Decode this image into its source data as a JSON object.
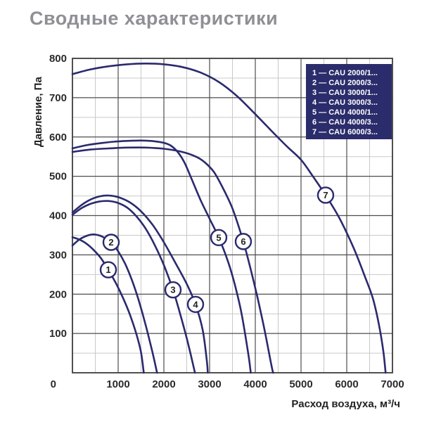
{
  "page_title": "Сводные характеристики",
  "colors": {
    "curve": "#2a2a6e",
    "legend_bg": "#2b2c6b",
    "legend_text": "#ffffff",
    "title_text": "#8f9095",
    "axis_text": "#2a2a2a",
    "grid_major": "#4d4d4d",
    "grid_minor": "#c9c9c9",
    "plot_border": "#3c3c3c",
    "marker_fill": "#ffffff"
  },
  "chart_data": {
    "type": "line",
    "title": "Сводные характеристики",
    "xlabel": "Расход воздуха, м³/ч",
    "ylabel": "Давление, Па",
    "xlim": [
      0,
      7000
    ],
    "ylim": [
      0,
      800
    ],
    "x_major_ticks": [
      1000,
      2000,
      3000,
      4000,
      5000,
      6000,
      7000
    ],
    "y_major_ticks": [
      800,
      700,
      600,
      500,
      400,
      300,
      200,
      100
    ],
    "origin_tick": "0",
    "x_minor_step": 500,
    "y_minor_step": 50,
    "grid": true,
    "legend_position": "top-right",
    "legend_separator": "—",
    "series": [
      {
        "num": "1",
        "label": "CAU 2000/1...",
        "marker_at": [
          785,
          262
        ],
        "points": [
          [
            0,
            345
          ],
          [
            150,
            339
          ],
          [
            300,
            329
          ],
          [
            450,
            314
          ],
          [
            620,
            292
          ],
          [
            785,
            262
          ],
          [
            950,
            228
          ],
          [
            1100,
            192
          ],
          [
            1250,
            150
          ],
          [
            1400,
            98
          ],
          [
            1500,
            52
          ],
          [
            1560,
            0
          ]
        ]
      },
      {
        "num": "2",
        "label": "CAU 2000/3...",
        "marker_at": [
          846,
          332
        ],
        "points": [
          [
            0,
            324
          ],
          [
            150,
            339
          ],
          [
            300,
            348
          ],
          [
            450,
            352
          ],
          [
            600,
            349
          ],
          [
            720,
            342
          ],
          [
            846,
            332
          ],
          [
            1000,
            309
          ],
          [
            1150,
            278
          ],
          [
            1300,
            236
          ],
          [
            1450,
            184
          ],
          [
            1600,
            122
          ],
          [
            1750,
            52
          ],
          [
            1850,
            0
          ]
        ]
      },
      {
        "num": "3",
        "label": "CAU 3000/1...",
        "marker_at": [
          2200,
          211
        ],
        "points": [
          [
            0,
            402
          ],
          [
            200,
            419
          ],
          [
            400,
            430
          ],
          [
            600,
            436
          ],
          [
            800,
            437
          ],
          [
            1000,
            432
          ],
          [
            1200,
            420
          ],
          [
            1400,
            398
          ],
          [
            1600,
            367
          ],
          [
            1800,
            325
          ],
          [
            2000,
            274
          ],
          [
            2200,
            211
          ],
          [
            2350,
            152
          ],
          [
            2500,
            88
          ],
          [
            2600,
            40
          ],
          [
            2680,
            0
          ]
        ]
      },
      {
        "num": "4",
        "label": "CAU 3000/3...",
        "marker_at": [
          2692,
          174
        ],
        "points": [
          [
            0,
            408
          ],
          [
            200,
            427
          ],
          [
            400,
            441
          ],
          [
            600,
            449
          ],
          [
            800,
            451
          ],
          [
            1000,
            447
          ],
          [
            1250,
            434
          ],
          [
            1500,
            411
          ],
          [
            1750,
            377
          ],
          [
            2000,
            332
          ],
          [
            2250,
            280
          ],
          [
            2500,
            226
          ],
          [
            2692,
            174
          ],
          [
            2850,
            108
          ],
          [
            2940,
            30
          ],
          [
            2960,
            0
          ]
        ]
      },
      {
        "num": "5",
        "label": "CAU 4000/1...",
        "marker_at": [
          3200,
          344
        ],
        "points": [
          [
            0,
            571
          ],
          [
            300,
            579
          ],
          [
            600,
            584
          ],
          [
            900,
            588
          ],
          [
            1200,
            590
          ],
          [
            1500,
            591
          ],
          [
            1800,
            589
          ],
          [
            2000,
            585
          ],
          [
            2150,
            578
          ],
          [
            2300,
            562
          ],
          [
            2450,
            535
          ],
          [
            2600,
            495
          ],
          [
            2800,
            440
          ],
          [
            3000,
            392
          ],
          [
            3200,
            344
          ],
          [
            3400,
            284
          ],
          [
            3550,
            225
          ],
          [
            3700,
            150
          ],
          [
            3850,
            45
          ],
          [
            3900,
            0
          ]
        ]
      },
      {
        "num": "6",
        "label": "CAU 4000/3...",
        "marker_at": [
          3738,
          334
        ],
        "points": [
          [
            0,
            562
          ],
          [
            400,
            568
          ],
          [
            800,
            571
          ],
          [
            1200,
            573
          ],
          [
            1600,
            573
          ],
          [
            2000,
            570
          ],
          [
            2400,
            562
          ],
          [
            2700,
            550
          ],
          [
            2900,
            535
          ],
          [
            3100,
            510
          ],
          [
            3300,
            468
          ],
          [
            3480,
            424
          ],
          [
            3600,
            385
          ],
          [
            3738,
            334
          ],
          [
            3880,
            272
          ],
          [
            4050,
            190
          ],
          [
            4200,
            110
          ],
          [
            4350,
            20
          ],
          [
            4390,
            0
          ]
        ]
      },
      {
        "num": "7",
        "label": "CAU 6000/3...",
        "marker_at": [
          5538,
          452
        ],
        "points": [
          [
            0,
            760
          ],
          [
            400,
            772
          ],
          [
            800,
            780
          ],
          [
            1200,
            785
          ],
          [
            1600,
            787
          ],
          [
            2000,
            785
          ],
          [
            2400,
            778
          ],
          [
            2800,
            764
          ],
          [
            3200,
            740
          ],
          [
            3600,
            704
          ],
          [
            4000,
            658
          ],
          [
            4400,
            610
          ],
          [
            4700,
            575
          ],
          [
            5000,
            542
          ],
          [
            5270,
            498
          ],
          [
            5538,
            452
          ],
          [
            5800,
            402
          ],
          [
            6000,
            356
          ],
          [
            6200,
            304
          ],
          [
            6400,
            244
          ],
          [
            6570,
            190
          ],
          [
            6700,
            125
          ],
          [
            6800,
            55
          ],
          [
            6850,
            0
          ]
        ]
      }
    ]
  }
}
